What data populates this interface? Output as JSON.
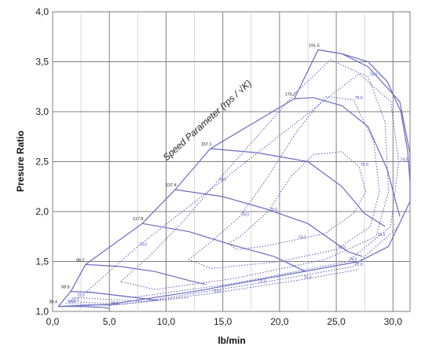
{
  "chart_data": {
    "type": "line",
    "title": "",
    "xlabel": "lb/min",
    "ylabel": "Presure Ratio",
    "xlim": [
      0,
      31.5
    ],
    "ylim": [
      1.0,
      4.0
    ],
    "x_ticks": [
      "0,0",
      "5,0",
      "10,0",
      "15,0",
      "20,0",
      "25,0",
      "30,0"
    ],
    "y_ticks": [
      "1,0",
      "1,5",
      "2,0",
      "2,5",
      "3,0",
      "3,5",
      "4,0"
    ],
    "grid": true,
    "annotation": "Speed Parameter (rps / √K)",
    "colors": {
      "lines": "#6b6bc4",
      "grid": "#808080",
      "minor_grid": "#d8d8d8",
      "efficiency": "#5a5ab8"
    },
    "surge_line": [
      {
        "x": 0.5,
        "y": 1.05
      },
      {
        "x": 1.6,
        "y": 1.2
      },
      {
        "x": 2.9,
        "y": 1.47
      },
      {
        "x": 7.9,
        "y": 1.88
      },
      {
        "x": 10.8,
        "y": 2.22
      },
      {
        "x": 13.9,
        "y": 2.63
      },
      {
        "x": 21.3,
        "y": 3.13
      },
      {
        "x": 23.4,
        "y": 3.62
      }
    ],
    "choke_line": [
      {
        "x": 23.4,
        "y": 3.62
      },
      {
        "x": 25.5,
        "y": 3.58
      },
      {
        "x": 27.8,
        "y": 3.45
      },
      {
        "x": 30.6,
        "y": 3.1
      },
      {
        "x": 31.5,
        "y": 2.58
      },
      {
        "x": 31.5,
        "y": 2.1
      },
      {
        "x": 29.6,
        "y": 1.65
      },
      {
        "x": 27.0,
        "y": 1.5
      },
      {
        "x": 13.0,
        "y": 1.21
      },
      {
        "x": 5.0,
        "y": 1.07
      },
      {
        "x": 0.5,
        "y": 1.05
      }
    ],
    "speed_lines": [
      {
        "label": "191.5",
        "points": [
          {
            "x": 23.4,
            "y": 3.62
          },
          {
            "x": 25.5,
            "y": 3.58
          },
          {
            "x": 27.8,
            "y": 3.5
          },
          {
            "x": 29.5,
            "y": 3.3
          },
          {
            "x": 30.7,
            "y": 3.0
          },
          {
            "x": 31.3,
            "y": 2.6
          },
          {
            "x": 31.5,
            "y": 2.3
          }
        ]
      },
      {
        "label": "176.7",
        "points": [
          {
            "x": 21.3,
            "y": 3.13
          },
          {
            "x": 23.0,
            "y": 3.14
          },
          {
            "x": 25.5,
            "y": 3.06
          },
          {
            "x": 27.8,
            "y": 2.85
          },
          {
            "x": 29.5,
            "y": 2.42
          },
          {
            "x": 30.6,
            "y": 1.95
          }
        ]
      },
      {
        "label": "157.1",
        "points": [
          {
            "x": 13.9,
            "y": 2.63
          },
          {
            "x": 18.0,
            "y": 2.59
          },
          {
            "x": 22.5,
            "y": 2.5
          },
          {
            "x": 25.5,
            "y": 2.25
          },
          {
            "x": 27.5,
            "y": 1.98
          },
          {
            "x": 29.3,
            "y": 1.85
          }
        ]
      },
      {
        "label": "137.4",
        "points": [
          {
            "x": 10.8,
            "y": 2.22
          },
          {
            "x": 15.0,
            "y": 2.15
          },
          {
            "x": 19.0,
            "y": 2.02
          },
          {
            "x": 22.5,
            "y": 1.88
          },
          {
            "x": 26.0,
            "y": 1.6
          },
          {
            "x": 27.3,
            "y": 1.55
          }
        ]
      },
      {
        "label": "117.8",
        "points": [
          {
            "x": 7.9,
            "y": 1.88
          },
          {
            "x": 12.0,
            "y": 1.8
          },
          {
            "x": 16.0,
            "y": 1.66
          },
          {
            "x": 19.5,
            "y": 1.55
          },
          {
            "x": 22.3,
            "y": 1.4
          }
        ]
      },
      {
        "label": "98.2",
        "points": [
          {
            "x": 2.9,
            "y": 1.47
          },
          {
            "x": 6.0,
            "y": 1.45
          },
          {
            "x": 9.0,
            "y": 1.4
          },
          {
            "x": 12.0,
            "y": 1.31
          },
          {
            "x": 13.5,
            "y": 1.27
          }
        ]
      },
      {
        "label": "58.6",
        "points": [
          {
            "x": 1.6,
            "y": 1.2
          },
          {
            "x": 3.5,
            "y": 1.19
          },
          {
            "x": 6.5,
            "y": 1.15
          },
          {
            "x": 9.3,
            "y": 1.11
          }
        ]
      },
      {
        "label": "39.4",
        "points": [
          {
            "x": 0.5,
            "y": 1.05
          },
          {
            "x": 2.5,
            "y": 1.05
          },
          {
            "x": 4.5,
            "y": 1.04
          },
          {
            "x": 5.0,
            "y": 1.03
          }
        ]
      }
    ],
    "efficiency_islands": [
      {
        "label": "79.0",
        "points": [
          {
            "x": 15.5,
            "y": 1.68
          },
          {
            "x": 16.5,
            "y": 1.75
          },
          {
            "x": 19.0,
            "y": 2.0
          },
          {
            "x": 21.0,
            "y": 2.35
          },
          {
            "x": 23.0,
            "y": 2.57
          },
          {
            "x": 25.5,
            "y": 2.6
          },
          {
            "x": 27.0,
            "y": 2.45
          },
          {
            "x": 27.6,
            "y": 2.2
          },
          {
            "x": 26.5,
            "y": 1.98
          },
          {
            "x": 24.0,
            "y": 1.78
          },
          {
            "x": 21.5,
            "y": 1.72
          },
          {
            "x": 18.5,
            "y": 1.65
          },
          {
            "x": 16.2,
            "y": 1.62
          },
          {
            "x": 15.5,
            "y": 1.68
          }
        ]
      },
      {
        "label": "78.0",
        "points": [
          {
            "x": 12.0,
            "y": 1.52
          },
          {
            "x": 14.0,
            "y": 1.7
          },
          {
            "x": 16.5,
            "y": 1.95
          },
          {
            "x": 19.0,
            "y": 2.35
          },
          {
            "x": 21.5,
            "y": 2.8
          },
          {
            "x": 24.0,
            "y": 3.15
          },
          {
            "x": 26.5,
            "y": 3.12
          },
          {
            "x": 28.3,
            "y": 2.7
          },
          {
            "x": 28.8,
            "y": 2.2
          },
          {
            "x": 28.0,
            "y": 1.85
          },
          {
            "x": 25.0,
            "y": 1.62
          },
          {
            "x": 20.0,
            "y": 1.5
          },
          {
            "x": 14.0,
            "y": 1.43
          },
          {
            "x": 12.0,
            "y": 1.52
          }
        ]
      },
      {
        "label": "76.0",
        "points": [
          {
            "x": 6.0,
            "y": 1.3
          },
          {
            "x": 8.5,
            "y": 1.55
          },
          {
            "x": 11.5,
            "y": 1.9
          },
          {
            "x": 14.5,
            "y": 2.3
          },
          {
            "x": 18.0,
            "y": 2.75
          },
          {
            "x": 21.5,
            "y": 3.2
          },
          {
            "x": 24.5,
            "y": 3.52
          },
          {
            "x": 27.8,
            "y": 3.35
          },
          {
            "x": 29.3,
            "y": 2.9
          },
          {
            "x": 29.6,
            "y": 2.2
          },
          {
            "x": 28.5,
            "y": 1.75
          },
          {
            "x": 24.0,
            "y": 1.52
          },
          {
            "x": 16.0,
            "y": 1.33
          },
          {
            "x": 9.0,
            "y": 1.22
          },
          {
            "x": 6.0,
            "y": 1.3
          }
        ]
      },
      {
        "label": "74.0",
        "points": [
          {
            "x": 3.0,
            "y": 1.2
          },
          {
            "x": 5.0,
            "y": 1.4
          },
          {
            "x": 7.5,
            "y": 1.65
          },
          {
            "x": 27.0,
            "y": 3.38
          },
          {
            "x": 29.8,
            "y": 3.1
          },
          {
            "x": 30.5,
            "y": 2.5
          },
          {
            "x": 29.8,
            "y": 1.85
          },
          {
            "x": 26.0,
            "y": 1.5
          },
          {
            "x": 16.0,
            "y": 1.28
          },
          {
            "x": 7.0,
            "y": 1.14
          },
          {
            "x": 3.0,
            "y": 1.2
          }
        ]
      },
      {
        "label": "72.0",
        "points": [
          {
            "x": 2.0,
            "y": 1.14
          },
          {
            "x": 8.0,
            "y": 1.1
          },
          {
            "x": 18.0,
            "y": 1.28
          },
          {
            "x": 26.5,
            "y": 1.45
          },
          {
            "x": 30.5,
            "y": 1.85
          }
        ]
      },
      {
        "label": "70.0",
        "points": [
          {
            "x": 1.5,
            "y": 1.1
          },
          {
            "x": 6.0,
            "y": 1.07
          },
          {
            "x": 14.0,
            "y": 1.18
          },
          {
            "x": 22.0,
            "y": 1.32
          },
          {
            "x": 27.0,
            "y": 1.42
          }
        ]
      },
      {
        "label": "68.0",
        "points": [
          {
            "x": 1.2,
            "y": 1.08
          },
          {
            "x": 5.0,
            "y": 1.06
          },
          {
            "x": 12.0,
            "y": 1.14
          }
        ]
      }
    ]
  }
}
